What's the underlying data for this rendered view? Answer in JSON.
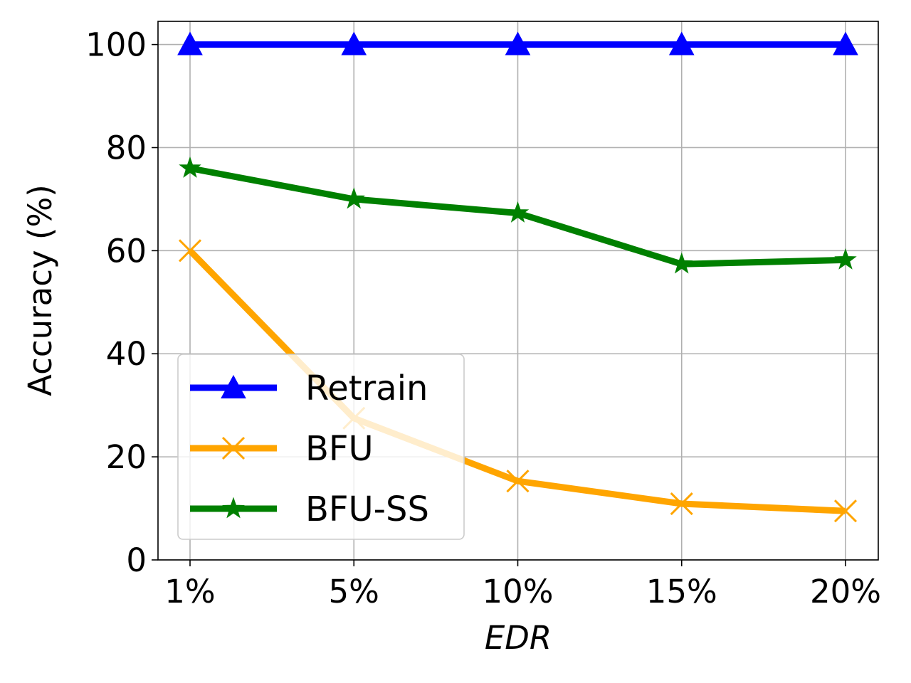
{
  "chart_data": {
    "type": "line",
    "title": "",
    "xlabel": "EDR",
    "ylabel": "Accuracy (%)",
    "categories": [
      "1%",
      "5%",
      "10%",
      "15%",
      "20%"
    ],
    "ylim": [
      0,
      104.5
    ],
    "yticks": [
      0,
      20,
      40,
      60,
      80,
      100
    ],
    "grid": true,
    "legend_position": "lower-left",
    "series": [
      {
        "name": "Retrain",
        "values": [
          100,
          100,
          100,
          100,
          100
        ],
        "color": "#0000ff",
        "marker": "triangle"
      },
      {
        "name": "BFU",
        "values": [
          60,
          27.5,
          15.3,
          10.9,
          9.5
        ],
        "color": "#ffa500",
        "marker": "x"
      },
      {
        "name": "BFU-SS",
        "values": [
          76,
          70,
          67.3,
          57.4,
          58.2
        ],
        "color": "#008000",
        "marker": "star"
      }
    ]
  }
}
